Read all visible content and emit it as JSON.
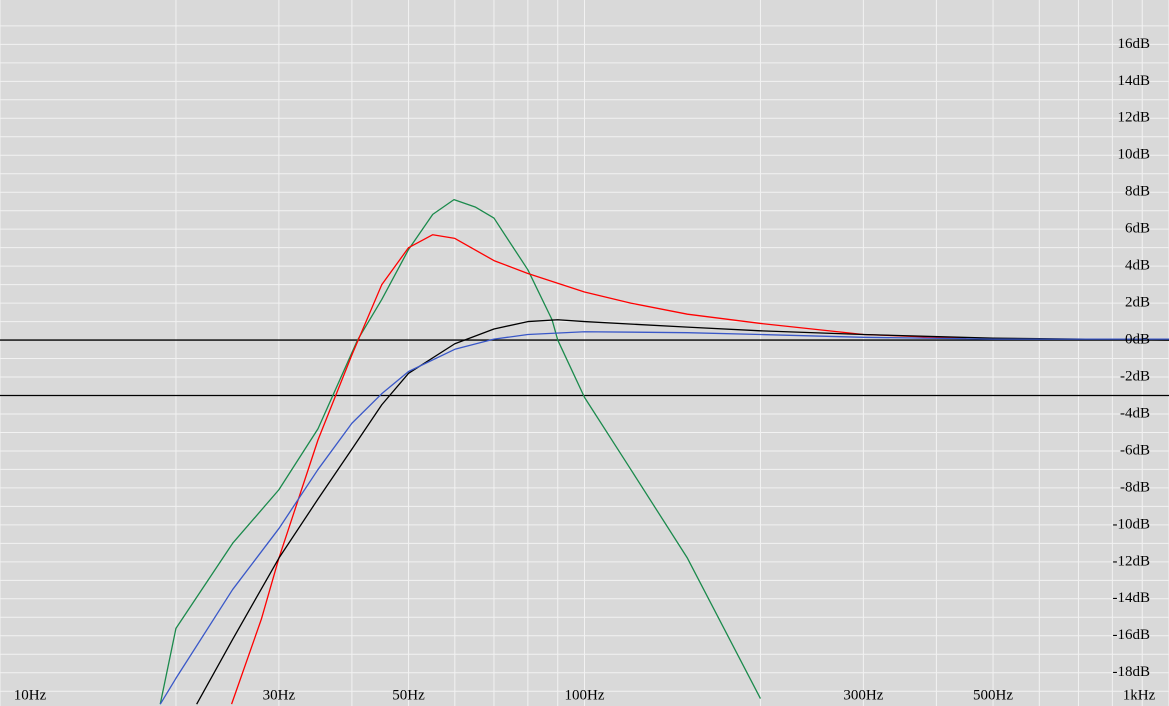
{
  "chart_data": {
    "type": "line",
    "log_x": true,
    "grid": true,
    "xlim": [
      10,
      1000
    ],
    "ylim": [
      -19.8,
      18.4
    ],
    "xticks": [
      {
        "value": 10,
        "label": "10Hz"
      },
      {
        "value": 30,
        "label": "30Hz"
      },
      {
        "value": 50,
        "label": "50Hz"
      },
      {
        "value": 100,
        "label": "100Hz"
      },
      {
        "value": 300,
        "label": "300Hz"
      },
      {
        "value": 500,
        "label": "500Hz"
      },
      {
        "value": 1000,
        "label": "1kHz"
      }
    ],
    "x_minor_ticks": [
      20,
      40,
      60,
      70,
      80,
      90,
      200,
      400,
      600,
      700,
      800,
      900
    ],
    "yticks": [
      {
        "value": -18,
        "label": "-18dB"
      },
      {
        "value": -16,
        "label": "-16dB"
      },
      {
        "value": -14,
        "label": "-14dB"
      },
      {
        "value": -12,
        "label": "-12dB"
      },
      {
        "value": -10,
        "label": "-10dB"
      },
      {
        "value": -8,
        "label": "-8dB"
      },
      {
        "value": -6,
        "label": "-6dB"
      },
      {
        "value": -4,
        "label": "-4dB"
      },
      {
        "value": -2,
        "label": "-2dB"
      },
      {
        "value": 0,
        "label": "0dB"
      },
      {
        "value": 2,
        "label": "2dB"
      },
      {
        "value": 4,
        "label": "4dB"
      },
      {
        "value": 6,
        "label": "6dB"
      },
      {
        "value": 8,
        "label": "8dB"
      },
      {
        "value": 10,
        "label": "10dB"
      },
      {
        "value": 12,
        "label": "12dB"
      },
      {
        "value": 14,
        "label": "14dB"
      },
      {
        "value": 16,
        "label": "16dB"
      }
    ],
    "y_minor_ticks": [
      -19,
      -17,
      -15,
      -13,
      -11,
      -9,
      -7,
      -5,
      -3,
      -1,
      1,
      3,
      5,
      7,
      9,
      11,
      13,
      15,
      17
    ],
    "reference_lines": [
      0,
      -3
    ],
    "series": [
      {
        "color": "#1b8a4c",
        "x": [
          18.8,
          20,
          25,
          30,
          35,
          40.9,
          45,
          50,
          55,
          59.8,
          65,
          70,
          80,
          88,
          90,
          100,
          120,
          150,
          200
        ],
        "values": [
          -19.7,
          -15.6,
          -11,
          -8.1,
          -4.8,
          0,
          2.2,
          4.9,
          6.8,
          7.6,
          7.2,
          6.6,
          3.8,
          1.1,
          0,
          -3.1,
          -7,
          -11.8,
          -19.4
        ]
      },
      {
        "color": "#ff0000",
        "x": [
          24.9,
          28,
          30,
          35,
          40,
          45,
          50,
          55,
          60,
          70,
          80,
          100,
          120,
          150,
          200,
          300,
          400,
          450
        ],
        "values": [
          -19.7,
          -15.1,
          -11.8,
          -5.4,
          -0.8,
          3,
          5,
          5.7,
          5.5,
          4.3,
          3.6,
          2.6,
          2,
          1.4,
          0.9,
          0.3,
          0.15,
          0.1
        ]
      },
      {
        "color": "#000000",
        "x": [
          21.7,
          25,
          30,
          35,
          40,
          45,
          50,
          60,
          70,
          80,
          90,
          100,
          150,
          200,
          300,
          500,
          1000
        ],
        "values": [
          -19.7,
          -16.2,
          -11.8,
          -8.6,
          -5.9,
          -3.5,
          -1.8,
          -0.2,
          0.6,
          1,
          1.1,
          1,
          0.7,
          0.5,
          0.3,
          0.1,
          0
        ]
      },
      {
        "color": "#3a58c8",
        "x": [
          18.8,
          20,
          25,
          30,
          35,
          40,
          45,
          50,
          60,
          70,
          80,
          100,
          150,
          200,
          300,
          500,
          1000
        ],
        "values": [
          -19.7,
          -18.3,
          -13.5,
          -10.2,
          -7,
          -4.5,
          -2.9,
          -1.7,
          -0.5,
          0.05,
          0.3,
          0.45,
          0.4,
          0.3,
          0.15,
          0.05,
          0.05
        ]
      }
    ]
  }
}
